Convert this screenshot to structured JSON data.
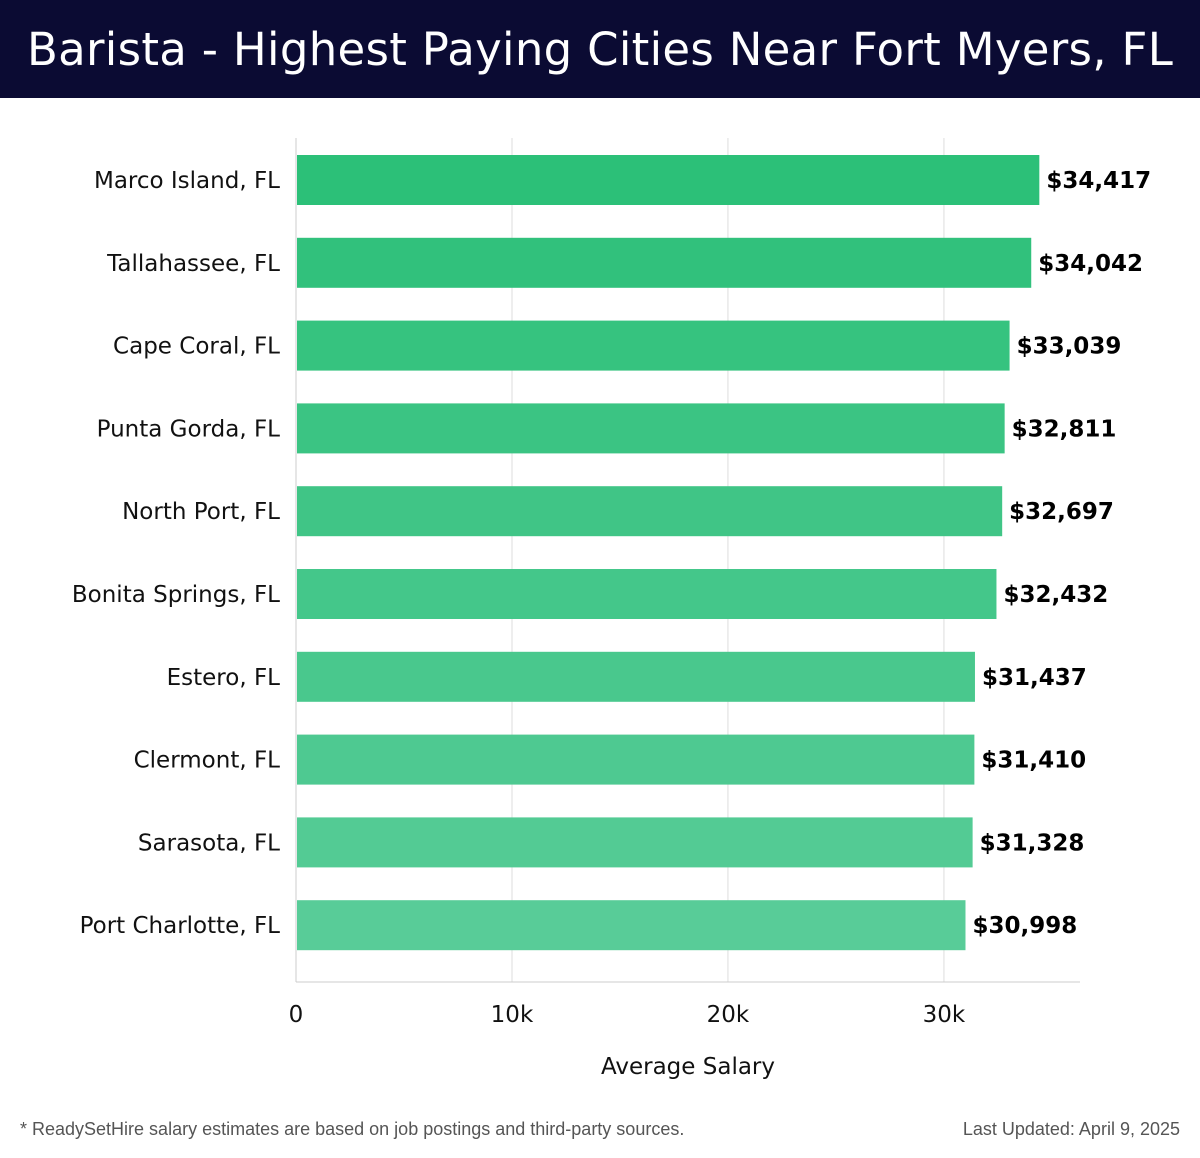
{
  "header": {
    "title": "Barista - Highest Paying Cities Near Fort Myers, FL",
    "background": "#0b0b33"
  },
  "chart_data": {
    "type": "bar",
    "orientation": "horizontal",
    "title": "Barista - Highest Paying Cities Near Fort Myers, FL",
    "xlabel": "Average Salary",
    "ylabel": "",
    "xlim": [
      0,
      36300
    ],
    "xticks": [
      0,
      10000,
      20000,
      30000
    ],
    "xtick_labels": [
      "0",
      "10k",
      "20k",
      "30k"
    ],
    "grid": true,
    "categories": [
      "Marco Island, FL",
      "Tallahassee, FL",
      "Cape Coral, FL",
      "Punta Gorda, FL",
      "North Port, FL",
      "Bonita Springs, FL",
      "Estero, FL",
      "Clermont, FL",
      "Sarasota, FL",
      "Port Charlotte, FL"
    ],
    "values": [
      34417,
      34042,
      33039,
      32811,
      32697,
      32432,
      31437,
      31410,
      31328,
      30998
    ],
    "value_labels": [
      "$34,417",
      "$34,042",
      "$33,039",
      "$32,811",
      "$32,697",
      "$32,432",
      "$31,437",
      "$31,410",
      "$31,328",
      "$30,998"
    ],
    "colors": {
      "bar_high": "#2cc078",
      "bar_low": "#58cc98",
      "grid": "#dddddd",
      "axis": "#cccccc"
    }
  },
  "footer": {
    "note": "* ReadySetHire salary estimates are based on job postings and third-party sources.",
    "updated": "Last Updated: April 9, 2025"
  }
}
